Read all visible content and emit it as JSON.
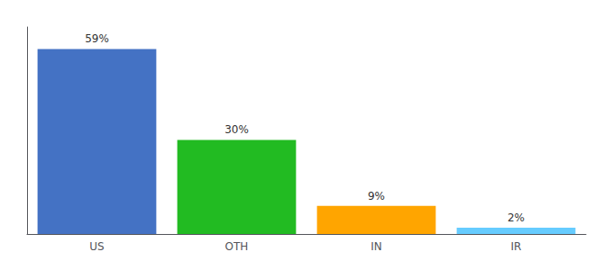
{
  "chart_data": {
    "type": "bar",
    "categories": [
      "US",
      "OTH",
      "IN",
      "IR"
    ],
    "values": [
      59,
      30,
      9,
      2
    ],
    "value_labels": [
      "59%",
      "30%",
      "9%",
      "2%"
    ],
    "colors": [
      "#4472C4",
      "#22BB22",
      "#FFA500",
      "#66CCFF"
    ],
    "ylim": [
      0,
      66
    ],
    "data_labels": true,
    "tick_labels": "x",
    "grid": false
  }
}
